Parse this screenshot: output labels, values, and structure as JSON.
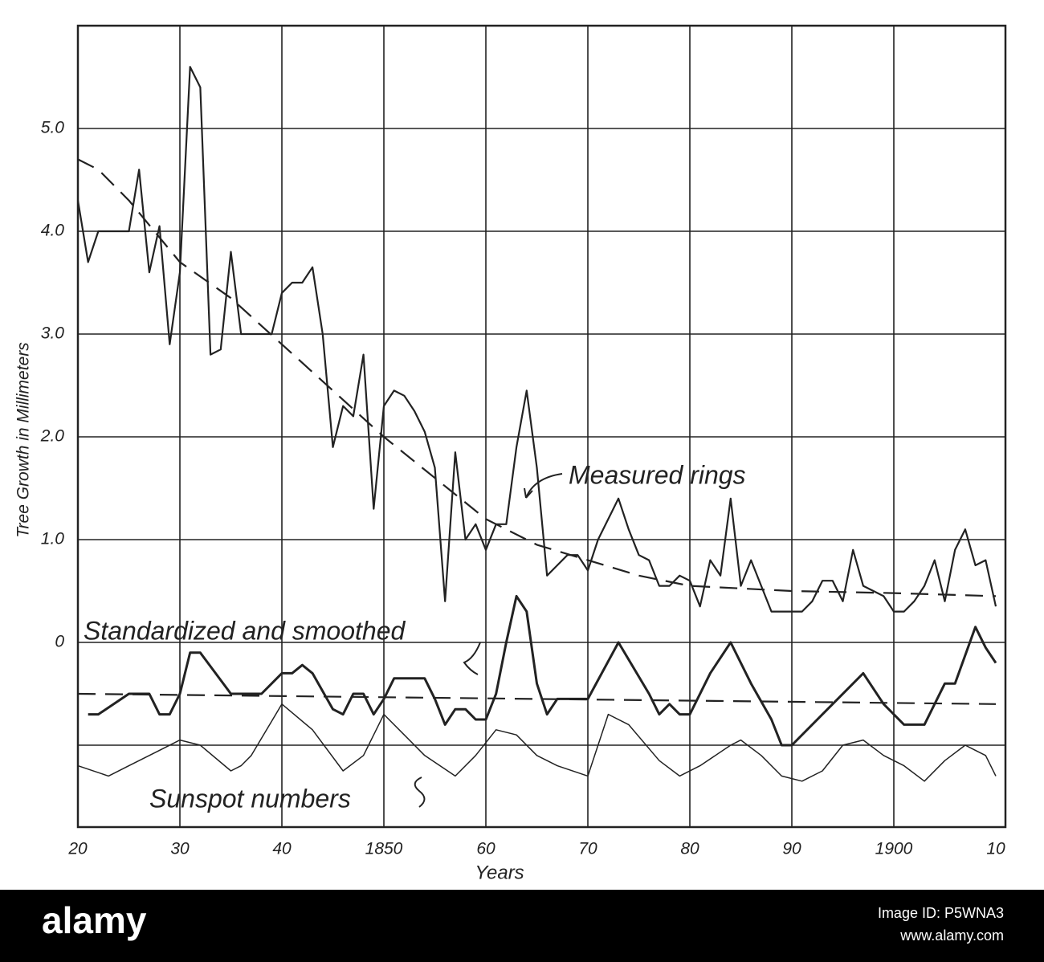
{
  "chart_data": {
    "type": "line",
    "ylabel": "Tree Growth in Millimeters",
    "xlabel": "Years",
    "xlim": [
      1820,
      1910
    ],
    "ylim": [
      -1.8,
      6.0
    ],
    "xticks": [
      {
        "value": 1820,
        "label": "20"
      },
      {
        "value": 1830,
        "label": "30"
      },
      {
        "value": 1840,
        "label": "40"
      },
      {
        "value": 1850,
        "label": "1850"
      },
      {
        "value": 1860,
        "label": "60"
      },
      {
        "value": 1870,
        "label": "70"
      },
      {
        "value": 1880,
        "label": "80"
      },
      {
        "value": 1890,
        "label": "90"
      },
      {
        "value": 1900,
        "label": "1900"
      },
      {
        "value": 1910,
        "label": "10"
      }
    ],
    "yticks": [
      0,
      {
        "value": 1,
        "label": "1.0"
      },
      {
        "value": 2,
        "label": "2.0"
      },
      {
        "value": 3,
        "label": "3.0"
      },
      {
        "value": 4,
        "label": "4.0"
      },
      {
        "value": 5,
        "label": "5.0"
      }
    ],
    "ygrid": [
      -1,
      0,
      1,
      2,
      3,
      4,
      5,
      6
    ],
    "grid": true,
    "annotations": [
      "Measured rings",
      "Standardized and smoothed",
      "Sunspot numbers"
    ],
    "series": [
      {
        "name": "Measured rings",
        "color": "#222222",
        "style": "solid",
        "width": 2.2,
        "x": [
          1820,
          1821,
          1822,
          1823,
          1824,
          1825,
          1826,
          1827,
          1828,
          1829,
          1830,
          1831,
          1832,
          1833,
          1834,
          1835,
          1836,
          1837,
          1838,
          1839,
          1840,
          1841,
          1842,
          1843,
          1844,
          1845,
          1846,
          1847,
          1848,
          1849,
          1850,
          1851,
          1852,
          1853,
          1854,
          1855,
          1856,
          1857,
          1858,
          1859,
          1860,
          1861,
          1862,
          1863,
          1864,
          1865,
          1866,
          1867,
          1868,
          1869,
          1870,
          1871,
          1872,
          1873,
          1874,
          1875,
          1876,
          1877,
          1878,
          1879,
          1880,
          1881,
          1882,
          1883,
          1884,
          1885,
          1886,
          1887,
          1888,
          1889,
          1890,
          1891,
          1892,
          1893,
          1894,
          1895,
          1896,
          1897,
          1898,
          1899,
          1900,
          1901,
          1902,
          1903,
          1904,
          1905,
          1906,
          1907,
          1908,
          1909,
          1910
        ],
        "values": [
          4.3,
          3.7,
          4.0,
          4.0,
          4.0,
          4.0,
          4.6,
          3.6,
          4.05,
          2.9,
          3.6,
          5.6,
          5.4,
          2.8,
          2.85,
          3.8,
          3.0,
          3.0,
          3.0,
          3.0,
          3.4,
          3.5,
          3.5,
          3.65,
          3.0,
          1.9,
          2.3,
          2.2,
          2.8,
          1.3,
          2.3,
          2.45,
          2.4,
          2.25,
          2.05,
          1.7,
          0.4,
          1.85,
          1.0,
          1.15,
          0.9,
          1.15,
          1.15,
          1.9,
          2.45,
          1.7,
          0.65,
          0.75,
          0.85,
          0.85,
          0.7,
          1.0,
          1.2,
          1.4,
          1.1,
          0.85,
          0.8,
          0.55,
          0.55,
          0.65,
          0.6,
          0.35,
          0.8,
          0.65,
          1.4,
          0.55,
          0.8,
          0.55,
          0.3,
          0.3,
          0.3,
          0.3,
          0.4,
          0.6,
          0.6,
          0.4,
          0.9,
          0.55,
          0.5,
          0.45,
          0.3,
          0.3,
          0.4,
          0.55,
          0.8,
          0.4,
          0.9,
          1.1,
          0.75,
          0.8,
          0.35
        ]
      },
      {
        "color": "#222222",
        "style": "dashed",
        "width": 2.2,
        "x": [
          1820,
          1822,
          1825,
          1830,
          1835,
          1840,
          1845,
          1850,
          1855,
          1860,
          1865,
          1870,
          1875,
          1880,
          1890,
          1900,
          1910
        ],
        "values": [
          4.7,
          4.6,
          4.3,
          3.7,
          3.35,
          2.9,
          2.45,
          2.0,
          1.6,
          1.2,
          0.95,
          0.8,
          0.65,
          0.55,
          0.5,
          0.48,
          0.45
        ]
      },
      {
        "name": "Standardized and smoothed",
        "color": "#222222",
        "style": "solid",
        "width": 3,
        "x": [
          1821,
          1822,
          1825,
          1827,
          1828,
          1829,
          1830,
          1831,
          1832,
          1835,
          1838,
          1840,
          1841,
          1842,
          1843,
          1845,
          1846,
          1847,
          1848,
          1849,
          1850,
          1851,
          1854,
          1855,
          1856,
          1857,
          1858,
          1859,
          1860,
          1861,
          1862,
          1863,
          1864,
          1865,
          1866,
          1867,
          1870,
          1873,
          1876,
          1877,
          1878,
          1879,
          1880,
          1882,
          1884,
          1886,
          1888,
          1889,
          1890,
          1893,
          1894,
          1897,
          1899,
          1901,
          1903,
          1905,
          1906,
          1908,
          1909,
          1910
        ],
        "values": [
          -0.7,
          -0.7,
          -0.5,
          -0.5,
          -0.7,
          -0.7,
          -0.5,
          -0.1,
          -0.1,
          -0.5,
          -0.5,
          -0.3,
          -0.3,
          -0.22,
          -0.3,
          -0.65,
          -0.7,
          -0.5,
          -0.5,
          -0.7,
          -0.55,
          -0.35,
          -0.35,
          -0.55,
          -0.8,
          -0.65,
          -0.65,
          -0.75,
          -0.75,
          -0.5,
          0.0,
          0.45,
          0.3,
          -0.4,
          -0.7,
          -0.55,
          -0.55,
          0.0,
          -0.5,
          -0.7,
          -0.6,
          -0.7,
          -0.7,
          -0.3,
          0.0,
          -0.4,
          -0.75,
          -1.0,
          -1.0,
          -0.7,
          -0.6,
          -0.3,
          -0.6,
          -0.8,
          -0.8,
          -0.4,
          -0.4,
          0.15,
          -0.05,
          -0.2
        ]
      },
      {
        "color": "#222222",
        "style": "dashed",
        "width": 2.2,
        "x": [
          1820,
          1910
        ],
        "values": [
          -0.5,
          -0.6
        ]
      },
      {
        "name": "Sunspot numbers",
        "color": "#222222",
        "style": "solid",
        "width": 1.5,
        "x": [
          1820,
          1823,
          1825,
          1828,
          1830,
          1832,
          1835,
          1836,
          1837,
          1840,
          1843,
          1846,
          1848,
          1850,
          1852,
          1854,
          1857,
          1859,
          1861,
          1863,
          1865,
          1867,
          1870,
          1872,
          1874,
          1877,
          1879,
          1881,
          1884,
          1885,
          1887,
          1889,
          1891,
          1893,
          1895,
          1897,
          1899,
          1901,
          1903,
          1905,
          1907,
          1908,
          1909,
          1910
        ],
        "values": [
          -1.2,
          -1.3,
          -1.2,
          -1.05,
          -0.95,
          -1.0,
          -1.25,
          -1.2,
          -1.1,
          -0.6,
          -0.85,
          -1.25,
          -1.1,
          -0.7,
          -0.9,
          -1.1,
          -1.3,
          -1.1,
          -0.85,
          -0.9,
          -1.1,
          -1.2,
          -1.3,
          -0.7,
          -0.8,
          -1.15,
          -1.3,
          -1.2,
          -1.0,
          -0.95,
          -1.1,
          -1.3,
          -1.35,
          -1.25,
          -1.0,
          -0.95,
          -1.1,
          -1.2,
          -1.35,
          -1.15,
          -1.0,
          -1.05,
          -1.1,
          -1.3
        ]
      }
    ]
  },
  "banner": {
    "logo": "alamy",
    "image_id": "Image ID: P5WNA3",
    "url": "www.alamy.com"
  }
}
